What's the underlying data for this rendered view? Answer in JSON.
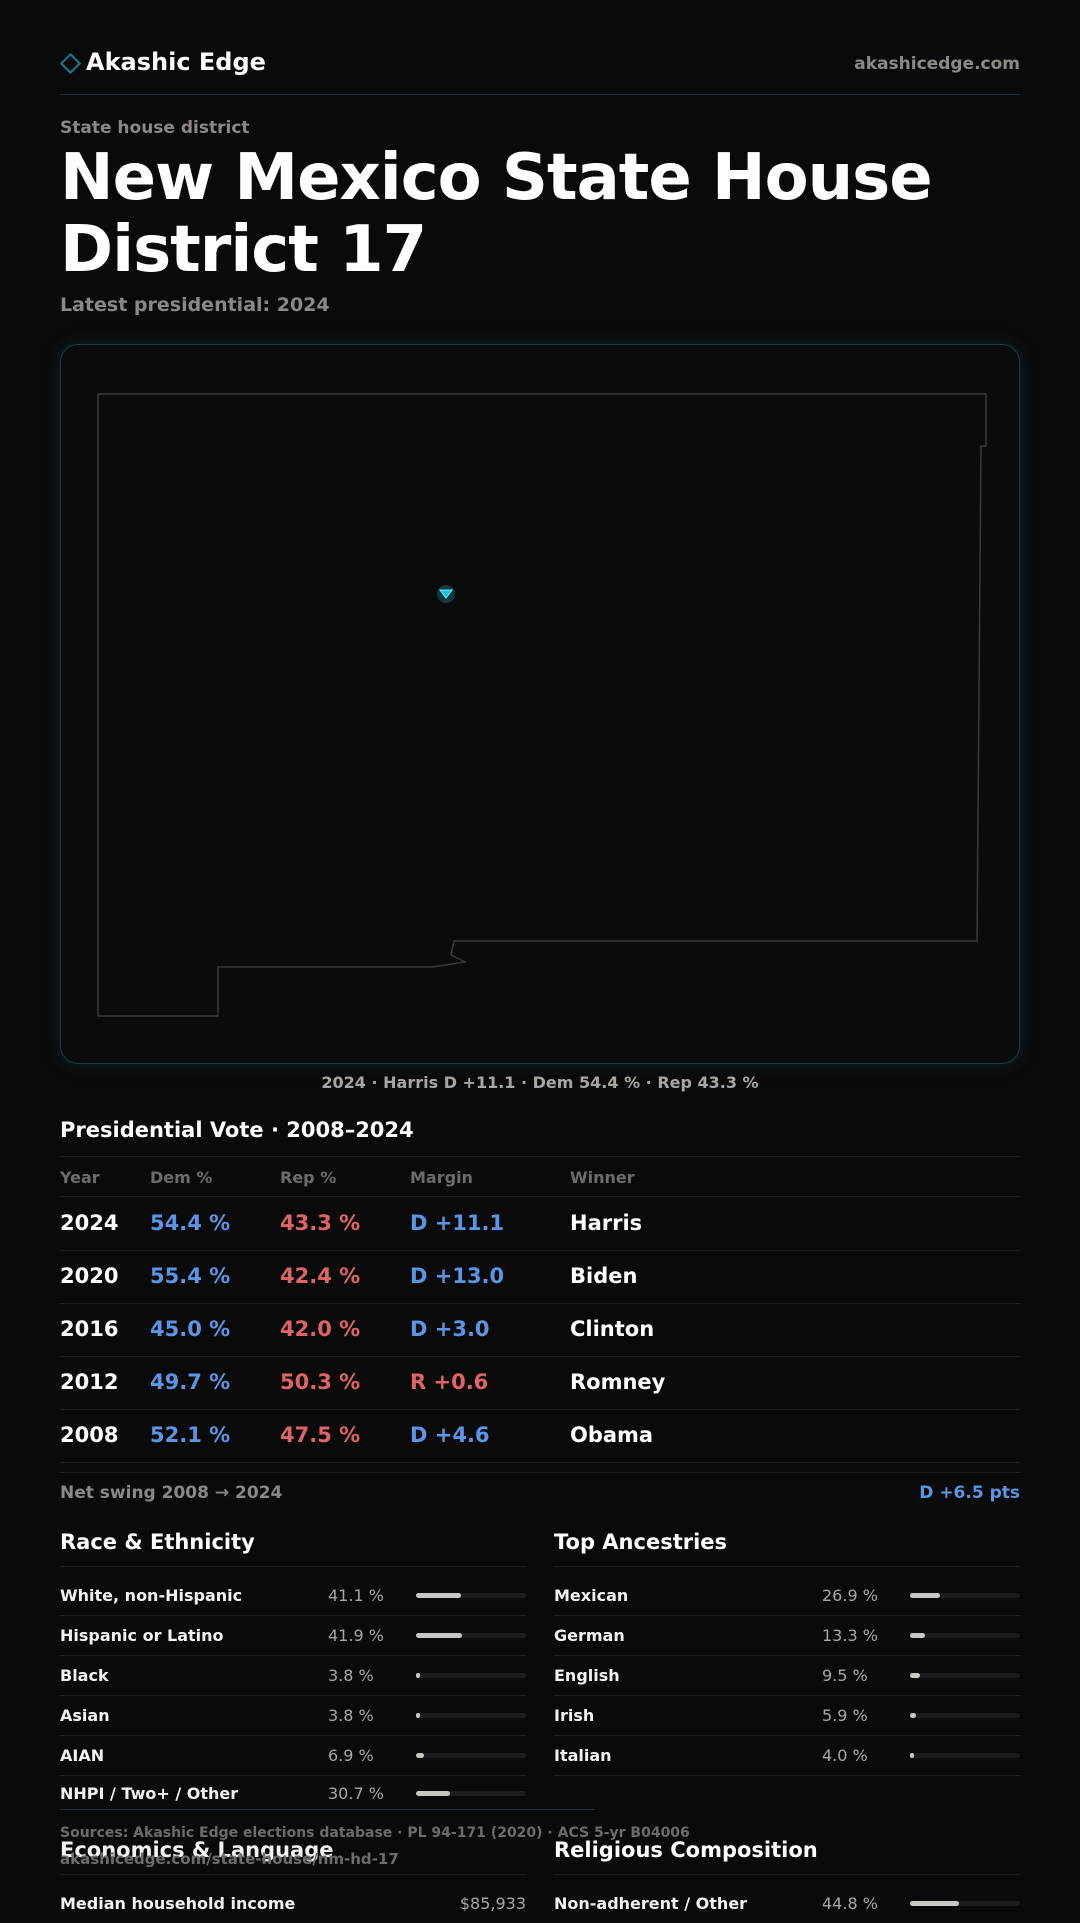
{
  "header": {
    "brand": "Akashic Edge",
    "site": "akashicedge.com"
  },
  "page": {
    "kicker": "State house district",
    "title": "New Mexico State House District 17",
    "latest": "Latest presidential: 2024"
  },
  "map": {
    "caption": "2024 · Harris D +11.1 · Dem 54.4 % · Rep 43.3 %",
    "accent": "#12c4dc"
  },
  "presidential": {
    "title": "Presidential Vote · 2008–2024",
    "headers": {
      "year": "Year",
      "dem": "Dem %",
      "rep": "Rep %",
      "margin": "Margin",
      "winner": "Winner"
    },
    "rows": [
      {
        "year": "2024",
        "dem": "54.4 %",
        "rep": "43.3 %",
        "margin": "D +11.1",
        "winner": "Harris",
        "party": "D"
      },
      {
        "year": "2020",
        "dem": "55.4 %",
        "rep": "42.4 %",
        "margin": "D +13.0",
        "winner": "Biden",
        "party": "D"
      },
      {
        "year": "2016",
        "dem": "45.0 %",
        "rep": "42.0 %",
        "margin": "D +3.0",
        "winner": "Clinton",
        "party": "D"
      },
      {
        "year": "2012",
        "dem": "49.7 %",
        "rep": "50.3 %",
        "margin": "R +0.6",
        "winner": "Romney",
        "party": "R"
      },
      {
        "year": "2008",
        "dem": "52.1 %",
        "rep": "47.5 %",
        "margin": "D +4.6",
        "winner": "Obama",
        "party": "D"
      }
    ],
    "swing_label": "Net swing 2008 → 2024",
    "swing_value": "D +6.5 pts"
  },
  "colors": {
    "dem": "#5b95e6",
    "rep": "#e06466"
  },
  "race": {
    "title": "Race & Ethnicity",
    "rows": [
      {
        "label": "White, non-Hispanic",
        "pct": "41.1 %",
        "value": 41.1
      },
      {
        "label": "Hispanic or Latino",
        "pct": "41.9 %",
        "value": 41.9
      },
      {
        "label": "Black",
        "pct": "3.8 %",
        "value": 3.8
      },
      {
        "label": "Asian",
        "pct": "3.8 %",
        "value": 3.8
      },
      {
        "label": "AIAN",
        "pct": "6.9 %",
        "value": 6.9
      },
      {
        "label": "NHPI / Two+ / Other",
        "pct": "30.7 %",
        "value": 30.7
      }
    ]
  },
  "ancestry": {
    "title": "Top Ancestries",
    "rows": [
      {
        "label": "Mexican",
        "pct": "26.9 %",
        "value": 26.9
      },
      {
        "label": "German",
        "pct": "13.3 %",
        "value": 13.3
      },
      {
        "label": "English",
        "pct": "9.5 %",
        "value": 9.5
      },
      {
        "label": "Irish",
        "pct": "5.9 %",
        "value": 5.9
      },
      {
        "label": "Italian",
        "pct": "4.0 %",
        "value": 4.0
      }
    ]
  },
  "footer": {
    "sources": "Sources: Akashic Edge elections database · PL 94-171 (2020) · ACS 5-yr B04006",
    "url": "akashicedge.com/state-house/nm-hd-17"
  },
  "economics": {
    "title": "Economics & Language",
    "rows": [
      {
        "label": "Median household income",
        "value": "$85,933"
      }
    ]
  },
  "religion": {
    "title": "Religious Composition",
    "rows": [
      {
        "label": "Non-adherent / Other",
        "pct": "44.8 %",
        "value": 44.8
      }
    ]
  }
}
